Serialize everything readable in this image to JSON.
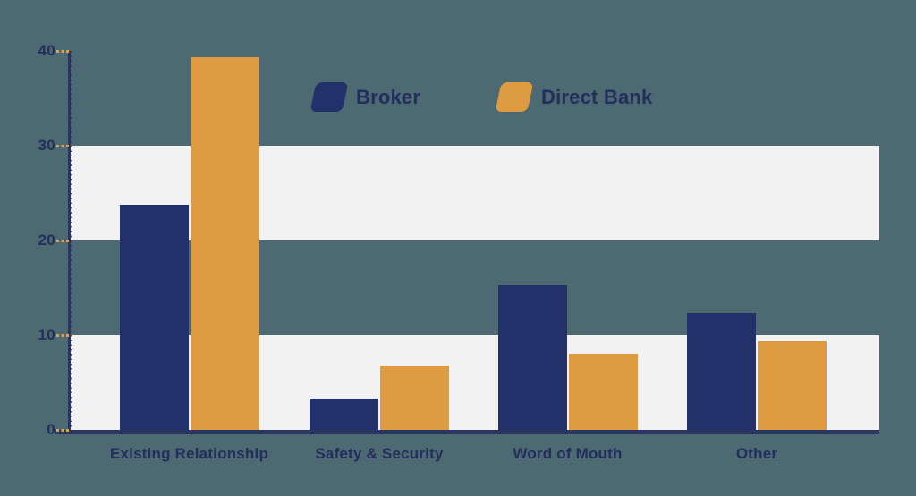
{
  "chart_data": {
    "type": "bar",
    "title": "",
    "categories": [
      "Existing Relationship",
      "Safety & Security",
      "Word of Mouth",
      "Other"
    ],
    "series": [
      {
        "name": "Broker",
        "color": "#223169",
        "values": [
          23.8,
          3.3,
          15.3,
          12.4
        ]
      },
      {
        "name": "Direct Bank",
        "color": "#de9b42",
        "values": [
          39.3,
          6.8,
          8.0,
          9.3
        ]
      }
    ],
    "y_axis": {
      "min": 0,
      "max": 40,
      "tick_interval": 10,
      "tick_labels": [
        "0",
        "10",
        "20",
        "30",
        "40"
      ]
    },
    "xlabel": "",
    "ylabel": "",
    "ylim": [
      0,
      40
    ],
    "legend_position": "top",
    "grid": "alternating horizontal background bands",
    "band_ranges": [
      [
        20,
        30
      ],
      [
        0,
        10
      ]
    ]
  },
  "colors": {
    "background": "#4d6971",
    "band": "#f2f2f3",
    "axis": "#2b3562",
    "tick_dash": "#dfa04a",
    "text": "#232e5d"
  }
}
